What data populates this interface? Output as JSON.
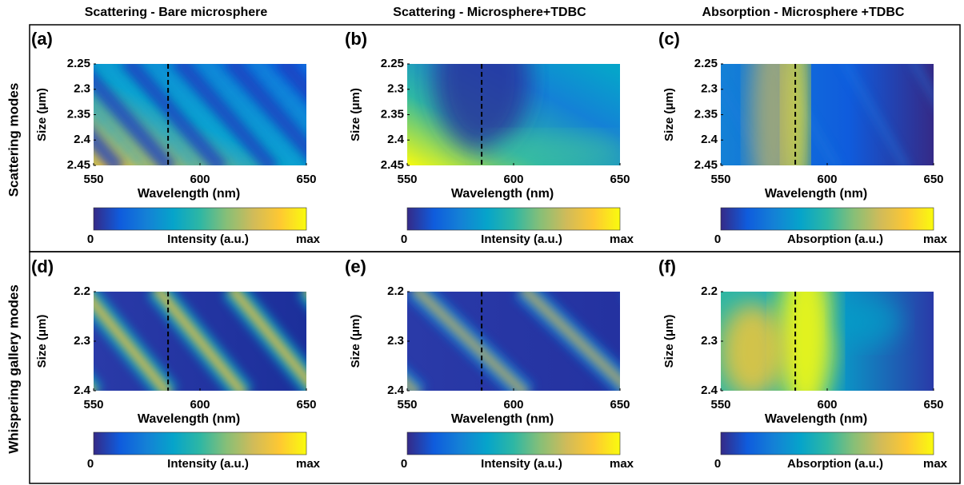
{
  "row_labels": [
    "Scattering modes",
    "Whispering gallery modes"
  ],
  "colormap": [
    "#352a87",
    "#0f5cdd",
    "#1481d6",
    "#06a4ca",
    "#2eb7a4",
    "#87bf77",
    "#d1bb59",
    "#fec832",
    "#f9fb0e"
  ],
  "chart_data": [
    {
      "type": "heatmap",
      "panel": "(a)",
      "title": "Scattering - Bare microsphere",
      "xlabel": "Wavelength (nm)",
      "ylabel": "Size (μm)",
      "xlim": [
        550,
        650
      ],
      "xticks": [
        550,
        600,
        650
      ],
      "ylim": [
        2.25,
        2.45
      ],
      "yticks": [
        2.25,
        2.3,
        2.35,
        2.4,
        2.45
      ],
      "y_reversed": true,
      "reference_line": 585,
      "colorbar": {
        "min_label": "0",
        "max_label": "max",
        "label": "Intensity (a.u.)"
      }
    },
    {
      "type": "heatmap",
      "panel": "(b)",
      "title": "Scattering - Microsphere+TDBC",
      "xlabel": "Wavelength (nm)",
      "ylabel": "Size (μm)",
      "xlim": [
        550,
        650
      ],
      "xticks": [
        550,
        600,
        650
      ],
      "ylim": [
        2.25,
        2.45
      ],
      "yticks": [
        2.25,
        2.3,
        2.35,
        2.4,
        2.45
      ],
      "y_reversed": true,
      "reference_line": 585,
      "colorbar": {
        "min_label": "0",
        "max_label": "max",
        "label": "Intensity (a.u.)"
      }
    },
    {
      "type": "heatmap",
      "panel": "(c)",
      "title": "Absorption - Microsphere +TDBC",
      "xlabel": "Wavelength (nm)",
      "ylabel": "Size (μm)",
      "xlim": [
        550,
        650
      ],
      "xticks": [
        550,
        600,
        650
      ],
      "ylim": [
        2.25,
        2.45
      ],
      "yticks": [
        2.25,
        2.3,
        2.35,
        2.4,
        2.45
      ],
      "y_reversed": true,
      "reference_line": 585,
      "colorbar": {
        "min_label": "0",
        "max_label": "max",
        "label": "Absorption  (a.u.)"
      }
    },
    {
      "type": "heatmap",
      "panel": "(d)",
      "xlabel": "Wavelength (nm)",
      "ylabel": "Size (μm)",
      "xlim": [
        550,
        650
      ],
      "xticks": [
        550,
        600,
        650
      ],
      "ylim": [
        2.2,
        2.4
      ],
      "yticks": [
        2.2,
        2.3,
        2.4
      ],
      "y_reversed": true,
      "reference_line": 585,
      "colorbar": {
        "min_label": "0",
        "max_label": "max",
        "label": "Intensity (a.u.)"
      }
    },
    {
      "type": "heatmap",
      "panel": "(e)",
      "xlabel": "Wavelength (nm)",
      "ylabel": "Size (μm)",
      "xlim": [
        550,
        650
      ],
      "xticks": [
        550,
        600,
        650
      ],
      "ylim": [
        2.2,
        2.4
      ],
      "yticks": [
        2.2,
        2.3,
        2.4
      ],
      "y_reversed": true,
      "reference_line": 585,
      "colorbar": {
        "min_label": "0",
        "max_label": "max",
        "label": "Intensity (a.u.)"
      }
    },
    {
      "type": "heatmap",
      "panel": "(f)",
      "xlabel": "Wavelength (nm)",
      "ylabel": "Size (μm)",
      "xlim": [
        550,
        650
      ],
      "xticks": [
        550,
        600,
        650
      ],
      "ylim": [
        2.2,
        2.4
      ],
      "yticks": [
        2.2,
        2.3,
        2.4
      ],
      "y_reversed": true,
      "reference_line": 585,
      "colorbar": {
        "min_label": "0",
        "max_label": "max",
        "label": "Absorption (a.u.)"
      }
    }
  ]
}
